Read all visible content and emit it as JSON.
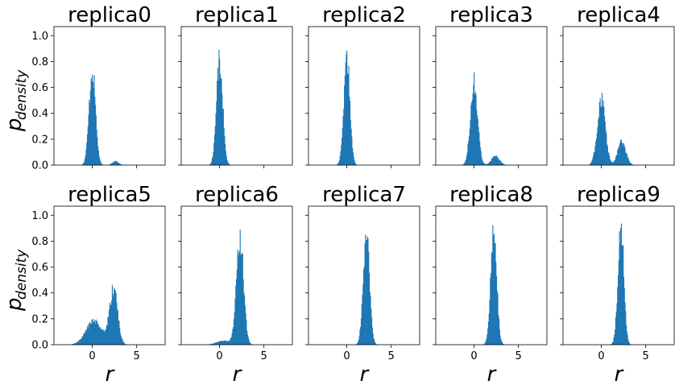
{
  "chart_data": [
    {
      "type": "bar",
      "title": "replica0",
      "xlabel": "",
      "ylabel": "p",
      "ylabel_subscript": "density",
      "xlim": [
        -4.3,
        8.2
      ],
      "ylim": [
        0,
        1.07
      ],
      "xticks": [],
      "yticks": [
        "0.0",
        "0.2",
        "0.4",
        "0.6",
        "0.8",
        "1.0"
      ],
      "color": "#1f77b4",
      "peaks": [
        {
          "mu": 0.0,
          "sigma": 0.36,
          "height": 0.73
        },
        {
          "mu": 2.6,
          "sigma": 0.35,
          "height": 0.03
        }
      ]
    },
    {
      "type": "bar",
      "title": "replica1",
      "xlabel": "",
      "ylabel": "",
      "ylabel_subscript": "",
      "xlim": [
        -4.3,
        8.2
      ],
      "ylim": [
        0,
        1.07
      ],
      "xticks": [],
      "yticks": [],
      "color": "#1f77b4",
      "peaks": [
        {
          "mu": 0.0,
          "sigma": 0.35,
          "height": 0.81
        }
      ]
    },
    {
      "type": "bar",
      "title": "replica2",
      "xlabel": "",
      "ylabel": "",
      "ylabel_subscript": "",
      "xlim": [
        -4.3,
        8.2
      ],
      "ylim": [
        0,
        1.07
      ],
      "xticks": [],
      "yticks": [],
      "color": "#1f77b4",
      "peaks": [
        {
          "mu": 0.0,
          "sigma": 0.34,
          "height": 0.83
        }
      ]
    },
    {
      "type": "bar",
      "title": "replica3",
      "xlabel": "",
      "ylabel": "",
      "ylabel_subscript": "",
      "xlim": [
        -4.3,
        8.2
      ],
      "ylim": [
        0,
        1.07
      ],
      "xticks": [],
      "yticks": [],
      "color": "#1f77b4",
      "peaks": [
        {
          "mu": 0.0,
          "sigma": 0.4,
          "height": 0.64
        },
        {
          "mu": 2.4,
          "sigma": 0.45,
          "height": 0.07
        }
      ]
    },
    {
      "type": "bar",
      "title": "replica4",
      "xlabel": "",
      "ylabel": "",
      "ylabel_subscript": "",
      "xlim": [
        -4.3,
        8.2
      ],
      "ylim": [
        0,
        1.07
      ],
      "xticks": [],
      "yticks": [],
      "color": "#1f77b4",
      "peaks": [
        {
          "mu": 0.0,
          "sigma": 0.45,
          "height": 0.5
        },
        {
          "mu": 2.3,
          "sigma": 0.45,
          "height": 0.18
        }
      ]
    },
    {
      "type": "bar",
      "title": "replica5",
      "xlabel": "r",
      "ylabel": "p",
      "ylabel_subscript": "density",
      "xlim": [
        -4.3,
        8.2
      ],
      "ylim": [
        0,
        1.07
      ],
      "xticks": [
        "0",
        "5"
      ],
      "yticks": [
        "0.0",
        "0.2",
        "0.4",
        "0.6",
        "0.8",
        "1.0"
      ],
      "color": "#1f77b4",
      "peaks": [
        {
          "mu": 0.2,
          "sigma": 0.9,
          "height": 0.18
        },
        {
          "mu": 2.4,
          "sigma": 0.45,
          "height": 0.42
        }
      ]
    },
    {
      "type": "bar",
      "title": "replica6",
      "xlabel": "r",
      "ylabel": "",
      "ylabel_subscript": "",
      "xlim": [
        -4.3,
        8.2
      ],
      "ylim": [
        0,
        1.07
      ],
      "xticks": [
        "0",
        "5"
      ],
      "yticks": [],
      "color": "#1f77b4",
      "peaks": [
        {
          "mu": 2.3,
          "sigma": 0.4,
          "height": 0.82
        },
        {
          "mu": 0.5,
          "sigma": 0.8,
          "height": 0.03
        }
      ]
    },
    {
      "type": "bar",
      "title": "replica7",
      "xlabel": "r",
      "ylabel": "",
      "ylabel_subscript": "",
      "xlim": [
        -4.3,
        8.2
      ],
      "ylim": [
        0,
        1.07
      ],
      "xticks": [
        "0",
        "5"
      ],
      "yticks": [],
      "color": "#1f77b4",
      "peaks": [
        {
          "mu": 2.2,
          "sigma": 0.35,
          "height": 0.87
        }
      ]
    },
    {
      "type": "bar",
      "title": "replica8",
      "xlabel": "r",
      "ylabel": "",
      "ylabel_subscript": "",
      "xlim": [
        -4.3,
        8.2
      ],
      "ylim": [
        0,
        1.07
      ],
      "xticks": [
        "0",
        "5"
      ],
      "yticks": [],
      "color": "#1f77b4",
      "peaks": [
        {
          "mu": 2.2,
          "sigma": 0.34,
          "height": 0.88
        }
      ]
    },
    {
      "type": "bar",
      "title": "replica9",
      "xlabel": "r",
      "ylabel": "",
      "ylabel_subscript": "",
      "xlim": [
        -4.3,
        8.2
      ],
      "ylim": [
        0,
        1.07
      ],
      "xticks": [
        "0",
        "5"
      ],
      "yticks": [],
      "color": "#1f77b4",
      "peaks": [
        {
          "mu": 2.2,
          "sigma": 0.33,
          "height": 0.92
        }
      ]
    }
  ]
}
